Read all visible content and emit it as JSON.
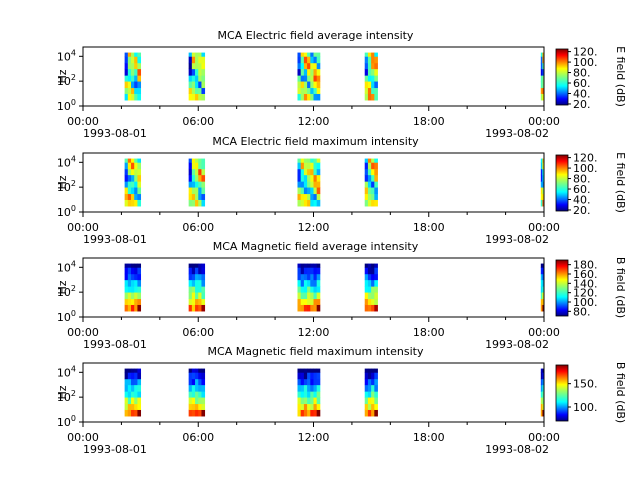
{
  "chart_data": [
    {
      "type": "heatmap",
      "title": "MCA  Electric field average intensity",
      "ylabel": "Hz",
      "yticks": [
        {
          "exp": "0"
        },
        {
          "exp": "2"
        },
        {
          "exp": "4"
        }
      ],
      "xticks": [
        "00:00",
        "06:00",
        "12:00",
        "18:00",
        "00:00"
      ],
      "date_start": "1993-08-01",
      "date_end": "1993-08-02",
      "colorbar_label": "E field (dB)",
      "colorbar_ticks": [
        "20.",
        "40.",
        "60.",
        "80.",
        "100.",
        "120."
      ],
      "colorbar_range": [
        18,
        125
      ],
      "intervals": [
        [
          "02:10",
          "03:00"
        ],
        [
          "05:30",
          "06:20"
        ],
        [
          "11:10",
          "12:20"
        ],
        [
          "14:40",
          "15:20"
        ],
        [
          "23:50",
          "00:00"
        ]
      ],
      "bins_hz": [
        3,
        10,
        30,
        100,
        300,
        1000,
        3000,
        10000,
        20000
      ]
    },
    {
      "type": "heatmap",
      "title": "MCA  Electric field maximum intensity",
      "ylabel": "Hz",
      "yticks": [
        {
          "exp": "0"
        },
        {
          "exp": "2"
        },
        {
          "exp": "4"
        }
      ],
      "xticks": [
        "00:00",
        "06:00",
        "12:00",
        "18:00",
        "00:00"
      ],
      "date_start": "1993-08-01",
      "date_end": "1993-08-02",
      "colorbar_label": "E field (dB)",
      "colorbar_ticks": [
        "20.",
        "40.",
        "60.",
        "80.",
        "100.",
        "120."
      ],
      "colorbar_range": [
        18,
        125
      ],
      "intervals": [
        [
          "02:10",
          "03:00"
        ],
        [
          "05:30",
          "06:20"
        ],
        [
          "11:10",
          "12:20"
        ],
        [
          "14:40",
          "15:20"
        ],
        [
          "23:50",
          "00:00"
        ]
      ],
      "bins_hz": [
        3,
        10,
        30,
        100,
        300,
        1000,
        3000,
        10000,
        20000
      ]
    },
    {
      "type": "heatmap",
      "title": "MCA  Magnetic field average intensity",
      "ylabel": "Hz",
      "yticks": [
        {
          "exp": "0"
        },
        {
          "exp": "2"
        },
        {
          "exp": "4"
        }
      ],
      "xticks": [
        "00:00",
        "06:00",
        "12:00",
        "18:00",
        "00:00"
      ],
      "date_start": "1993-08-01",
      "date_end": "1993-08-02",
      "colorbar_label": "B field (dB)",
      "colorbar_ticks": [
        "80.",
        "100.",
        "120.",
        "140.",
        "160.",
        "180."
      ],
      "colorbar_range": [
        70,
        190
      ],
      "intervals": [
        [
          "02:10",
          "03:00"
        ],
        [
          "05:30",
          "06:20"
        ],
        [
          "11:10",
          "12:20"
        ],
        [
          "14:40",
          "15:20"
        ],
        [
          "23:50",
          "00:00"
        ]
      ],
      "bins_hz": [
        3,
        10,
        30,
        100,
        300,
        1000,
        3000,
        10000,
        20000
      ]
    },
    {
      "type": "heatmap",
      "title": "MCA  Magnetic field maximum intensity",
      "ylabel": "Hz",
      "yticks": [
        {
          "exp": "0"
        },
        {
          "exp": "2"
        },
        {
          "exp": "4"
        }
      ],
      "xticks": [
        "00:00",
        "06:00",
        "12:00",
        "18:00",
        "00:00"
      ],
      "date_start": "1993-08-01",
      "date_end": "1993-08-02",
      "colorbar_label": "B field (dB)",
      "colorbar_ticks": [
        "100.",
        "150."
      ],
      "colorbar_range": [
        70,
        190
      ],
      "intervals": [
        [
          "02:10",
          "03:00"
        ],
        [
          "05:30",
          "06:20"
        ],
        [
          "11:10",
          "12:20"
        ],
        [
          "14:40",
          "15:20"
        ],
        [
          "23:50",
          "00:00"
        ]
      ],
      "bins_hz": [
        3,
        10,
        30,
        100,
        300,
        1000,
        3000,
        10000,
        20000
      ]
    }
  ]
}
